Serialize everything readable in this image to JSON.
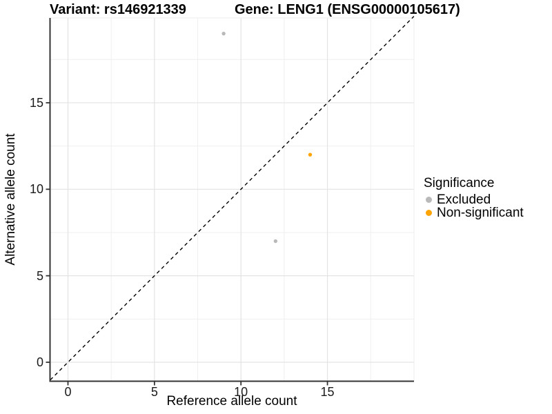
{
  "chart_data": {
    "type": "scatter",
    "title_variant": "Variant: rs146921339",
    "title_gene": "Gene: LENG1 (ENSG00000105617)",
    "xlabel": "Reference allele count",
    "ylabel": "Alternative allele count",
    "xlim": [
      0,
      19
    ],
    "ylim": [
      0,
      19
    ],
    "x_ticks": [
      0,
      5,
      10,
      15
    ],
    "y_ticks": [
      0,
      5,
      10,
      15
    ],
    "x_minor_ticks": [
      2.5,
      7.5,
      12.5,
      17.5
    ],
    "y_minor_ticks": [
      2.5,
      7.5,
      12.5,
      17.5
    ],
    "grid": "major and minor light gray gridlines on white panel",
    "identity_line": {
      "equation": "y = x",
      "style": "dashed",
      "color": "#000000"
    },
    "series": [
      {
        "name": "Excluded",
        "color": "#b9b9b9",
        "points": [
          {
            "x": 9,
            "y": 19
          },
          {
            "x": 12,
            "y": 7
          }
        ]
      },
      {
        "name": "Non-significant",
        "color": "#ffa405",
        "points": [
          {
            "x": 14,
            "y": 12
          }
        ]
      }
    ],
    "legend": {
      "title": "Significance",
      "position": "right",
      "entries": [
        {
          "label": "Excluded",
          "color": "#b9b9b9"
        },
        {
          "label": "Non-significant",
          "color": "#ffa405"
        }
      ]
    }
  },
  "colors": {
    "axis_line": "#333333",
    "major_grid": "#e3e3e3",
    "minor_grid": "#efefef",
    "panel_border": "#ececec"
  }
}
